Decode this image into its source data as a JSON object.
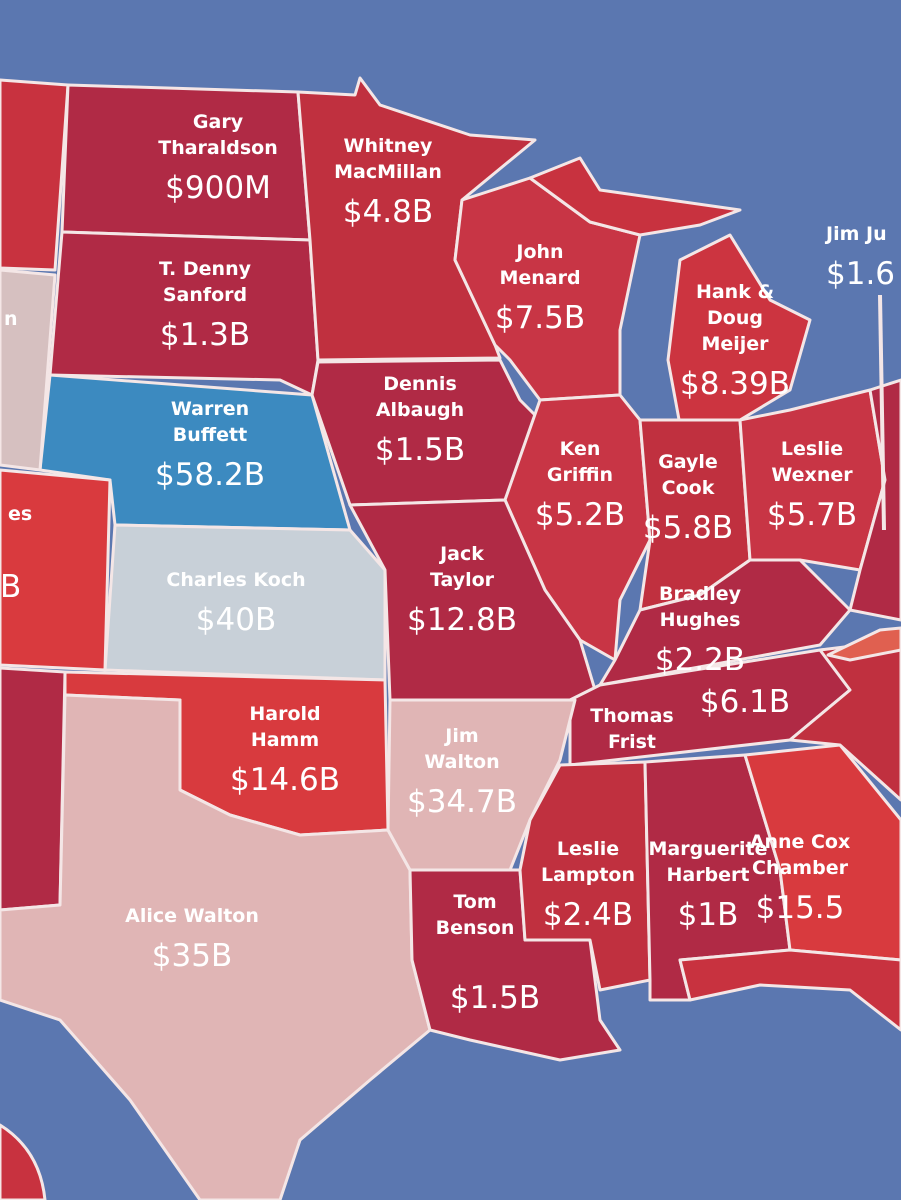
{
  "background_color": "#5b77b0",
  "regions": [
    {
      "person": [],
      "amount": "",
      "color": "#c8323f"
    },
    {
      "person": [
        "Gary",
        "Tharaldson"
      ],
      "amount": "$900M",
      "color": "#b02a45"
    },
    {
      "person": [
        "T. Denny",
        "Sanford"
      ],
      "amount": "$1.3B",
      "color": "#b02a45"
    },
    {
      "person": [
        "Whitney",
        "MacMillan"
      ],
      "amount": "$4.8B",
      "color": "#c0303f"
    },
    {
      "person": [
        "John",
        "Menard"
      ],
      "amount": "$7.5B",
      "color": "#c83545"
    },
    {
      "person": [],
      "amount": "",
      "color": "#c8323f"
    },
    {
      "person": [
        "Hank &",
        "Doug",
        "Meijer"
      ],
      "amount": "$8.39B",
      "color": "#cc3440"
    },
    {
      "person": [
        "Warren",
        "Buffett"
      ],
      "amount": "$58.2B",
      "color": "#3c8ac0"
    },
    {
      "person": [
        "Dennis",
        "Albaugh"
      ],
      "amount": "$1.5B",
      "color": "#b02a45"
    },
    {
      "person": [
        "Ken",
        "Griffin"
      ],
      "amount": "$5.2B",
      "color": "#c83545"
    },
    {
      "person": [
        "Gayle",
        "Cook"
      ],
      "amount": "$5.8B",
      "color": "#c0303f"
    },
    {
      "person": [
        "Leslie",
        "Wexner"
      ],
      "amount": "$5.7B",
      "color": "#c83545"
    },
    {
      "person": [
        "Charles Koch"
      ],
      "amount": "$40B",
      "color": "#c8d0d8"
    },
    {
      "person": [
        "Jack",
        "Taylor"
      ],
      "amount": "$12.8B",
      "color": "#b02a45"
    },
    {
      "person": [
        "Bradley",
        "Hughes"
      ],
      "amount": "$2.2B",
      "color": "#b02a45"
    },
    {
      "person": [
        "Thomas",
        "Frist"
      ],
      "amount": "$6.1B",
      "color": "#b02a45"
    },
    {
      "person": [
        "es"
      ],
      "amount": "B",
      "color": "#d93a3e"
    },
    {
      "person": [
        "n"
      ],
      "amount": "",
      "color": "#d6c0c0"
    },
    {
      "person": [],
      "amount": "",
      "color": "#b02a45"
    },
    {
      "person": [
        "Harold",
        "Hamm"
      ],
      "amount": "$14.6B",
      "color": "#d83a3e"
    },
    {
      "person": [
        "Alice Walton"
      ],
      "amount": "$35B",
      "color": "#e0b5b5"
    },
    {
      "person": [
        "Jim",
        "Walton"
      ],
      "amount": "$34.7B",
      "color": "#e0b5b5"
    },
    {
      "person": [
        "Tom",
        "Benson"
      ],
      "amount": "$1.5B",
      "color": "#b02a45"
    },
    {
      "person": [
        "Leslie",
        "Lampton"
      ],
      "amount": "$2.4B",
      "color": "#c0303f"
    },
    {
      "person": [
        "Marguerite",
        "Harbert"
      ],
      "amount": "$1B",
      "color": "#b02a45"
    },
    {
      "person": [
        "Anne Cox",
        "Chamber"
      ],
      "amount": "$15.5",
      "color": "#d83a3e"
    },
    {
      "person": [],
      "amount": "",
      "color": "#c8323f"
    },
    {
      "person": [],
      "amount": "",
      "color": "#b02a45"
    },
    {
      "person": [],
      "amount": "",
      "color": "#c0303f"
    },
    {
      "person": [],
      "amount": "",
      "color": "#e06050"
    },
    {
      "person": [
        "Jim Ju"
      ],
      "amount": "$1.6",
      "color": ""
    }
  ]
}
